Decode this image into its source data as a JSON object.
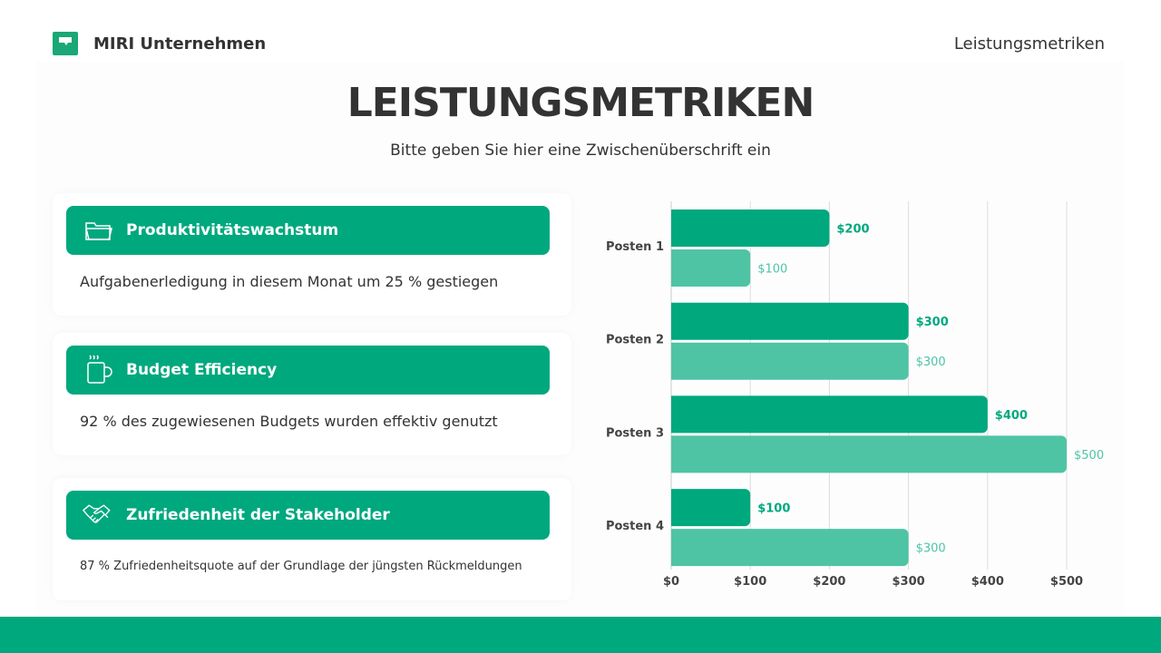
{
  "header": {
    "brand": "MIRI Unternehmen",
    "right": "Leistungsmetriken"
  },
  "title": "LEISTUNGSMETRIKEN",
  "subtitle": "Bitte geben Sie hier eine Zwischenüberschrift ein",
  "cards": [
    {
      "icon": "folder-icon",
      "title": "Produktivitätswachstum",
      "desc": "Aufgabenerledigung in diesem Monat um 25 % gestiegen"
    },
    {
      "icon": "coffee-mug-icon",
      "title": "Budget Efficiency",
      "desc": "92 % des zugewiesenen Budgets wurden effektiv genutzt"
    },
    {
      "icon": "handshake-icon",
      "title": "Zufriedenheit der Stakeholder",
      "desc": "87 % Zufriedenheitsquote auf der Grundlage der jüngsten Rückmeldungen"
    }
  ],
  "colors": {
    "primary": "#00a87e",
    "secondary": "#4fc4a5"
  },
  "chart_data": {
    "type": "bar",
    "orientation": "horizontal",
    "categories": [
      "Posten 1",
      "Posten 2",
      "Posten 3",
      "Posten 4"
    ],
    "series": [
      {
        "values": [
          200,
          300,
          400,
          100
        ],
        "color": "#00a87e"
      },
      {
        "values": [
          100,
          300,
          500,
          300
        ],
        "color": "#4fc4a5"
      }
    ],
    "xlim": [
      0,
      500
    ],
    "xticks": [
      "$0",
      "$100",
      "$200",
      "$300",
      "$400",
      "$500"
    ],
    "grid": true,
    "value_prefix": "$"
  }
}
